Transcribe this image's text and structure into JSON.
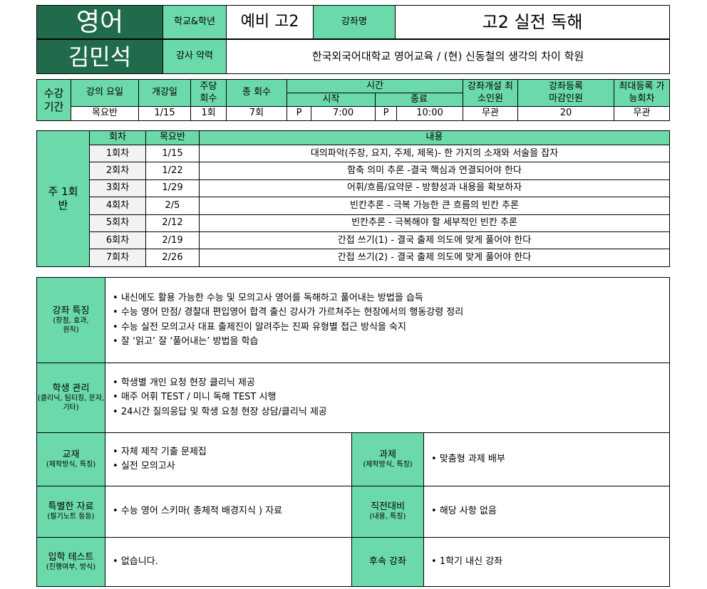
{
  "header": {
    "subject": "영어",
    "teacher": "김민석",
    "school_grade_label": "학교&학년",
    "school_grade": "예비 고2",
    "course_name_label": "강좌명",
    "course_name": "고2 실전 독해",
    "career_label": "강사 약력",
    "career": "한국외국어대학교 영어교육 / (현) 신동철의 생각의 차이 학원"
  },
  "period": {
    "label": "수강 기간",
    "headers": {
      "day": "강의 요일",
      "start_date": "개강일",
      "per_week": "주당 회수",
      "total": "총 회수",
      "time": "시간",
      "time_start": "시작",
      "time_end": "종료",
      "min": "강좌개설 최소인원",
      "deadline": "강좌등록 마감인원",
      "max": "최대등록 가능회차"
    },
    "values": {
      "day": "목요반",
      "start_date": "1/15",
      "per_week": "1회",
      "total": "7회",
      "start_ampm": "P",
      "start_time": "7:00",
      "end_ampm": "P",
      "end_time": "10:00",
      "min": "무관",
      "deadline": "20",
      "max": "무관"
    }
  },
  "schedule": {
    "label": "주 1회반",
    "headers": [
      "회차",
      "목요반",
      "내용"
    ],
    "rows": [
      [
        "1회차",
        "1/15",
        "대의파악(주장, 요지, 주제, 제목)- 한 가지의 소재와 서술을 잡자"
      ],
      [
        "2회차",
        "1/22",
        "함축 의미 추론 -결국 핵심과 연결되어야 한다"
      ],
      [
        "3회차",
        "1/29",
        "어휘/흐름/요약문 - 방향성과 내용을 확보하자"
      ],
      [
        "4회차",
        "2/5",
        "빈칸추론 - 극복 가능한 큰 흐름의 빈칸 추론"
      ],
      [
        "5회차",
        "2/12",
        "빈칸추론 - 극복해야 할 세부적인 빈칸 추론"
      ],
      [
        "6회차",
        "2/19",
        "간접 쓰기(1) - 결국 출제 의도에 맞게 풀어야 한다"
      ],
      [
        "7회차",
        "2/26",
        "간접 쓰기(2) - 결국 출제 의도에 맞게 풀어야 한다"
      ]
    ]
  },
  "features": {
    "label": "강좌 특징",
    "sub": "(장점, 효과, 원칙)",
    "items": [
      "내신에도 활용 가능한 수능 및 모의고사 영어를 독해하고 풀어내는 방법을 습득",
      "수능 영어 만점/ 경찰대 편입영어 합격 출신 강사가 가르쳐주는 현장에서의 행동강령 정리",
      "수능 실전 모의고사 대표 출제진이 알려주는 진짜 유형별 접근 방식을 숙지",
      "잘 ‘읽고’ 잘 ‘풀어내는’ 방법을 학습"
    ]
  },
  "management": {
    "label": "학생 관리",
    "sub": "(클리닉, 팀티칭, 문자, 기타)",
    "items": [
      "학생별 개인 요청 현장 클리닉 제공",
      "매주 어휘 TEST / 미니 독해 TEST 시행",
      "24시간 질의응답 및 학생 요청 현장 상담/클리닉 제공"
    ]
  },
  "textbook": {
    "label": "교재",
    "sub": "(제작방식, 특징)",
    "items": [
      "자체 제작 기출 문제집",
      "실전 모의고사"
    ]
  },
  "homework": {
    "label": "과제",
    "sub": "(제작방식, 특징)",
    "items": [
      "맞춤형 과제 배부"
    ]
  },
  "special": {
    "label": "특별한 자료",
    "sub": "(필기노트 등등)",
    "items": [
      "수능 영어 스키마( 총체적 배경지식 ) 자료"
    ]
  },
  "final": {
    "label": "직전대비",
    "sub": "(내용, 특징)",
    "items": [
      "해당 사항 없음"
    ]
  },
  "entrance": {
    "label": "입학 테스트",
    "sub": "(진행여부, 방식)",
    "items": [
      "없습니다."
    ]
  },
  "followup": {
    "label": "후속 강좌",
    "items": [
      "1학기 내신 강좌"
    ]
  }
}
